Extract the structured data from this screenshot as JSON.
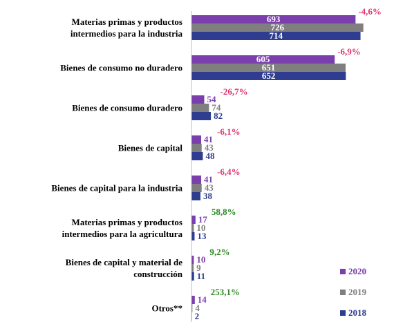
{
  "chart_data": {
    "type": "bar",
    "orientation": "horizontal",
    "categories": [
      "Materias primas y productos\nintermedios para la industria",
      "Bienes de consumo no duradero",
      "Bienes de consumo duradero",
      "Bienes de capital",
      "Bienes de capital para la industria",
      "Materias primas y productos\nintermedios para la agricultura",
      "Bienes de capital y material de\nconstrucción",
      "Otros**"
    ],
    "series": [
      {
        "name": "2020",
        "color": "#7b3fad",
        "values": [
          693,
          605,
          54,
          41,
          41,
          17,
          10,
          14
        ]
      },
      {
        "name": "2019",
        "color": "#7f7f7f",
        "values": [
          726,
          651,
          74,
          43,
          43,
          10,
          9,
          4
        ]
      },
      {
        "name": "2018",
        "color": "#2e3d8f",
        "values": [
          714,
          652,
          82,
          48,
          38,
          13,
          11,
          2
        ]
      }
    ],
    "annotations": [
      {
        "text": "-4,6%",
        "color": "#e0336e"
      },
      {
        "text": "-6,9%",
        "color": "#e0336e"
      },
      {
        "text": "-26,7%",
        "color": "#e0336e"
      },
      {
        "text": "-6,1%",
        "color": "#e0336e"
      },
      {
        "text": "-6,4%",
        "color": "#e0336e"
      },
      {
        "text": "58,8%",
        "color": "#2e8b22"
      },
      {
        "text": "9,2%",
        "color": "#2e8b22"
      },
      {
        "text": "253,1%",
        "color": "#2e8b22"
      }
    ],
    "xlim": [
      0,
      800
    ],
    "legend": "lower right"
  }
}
